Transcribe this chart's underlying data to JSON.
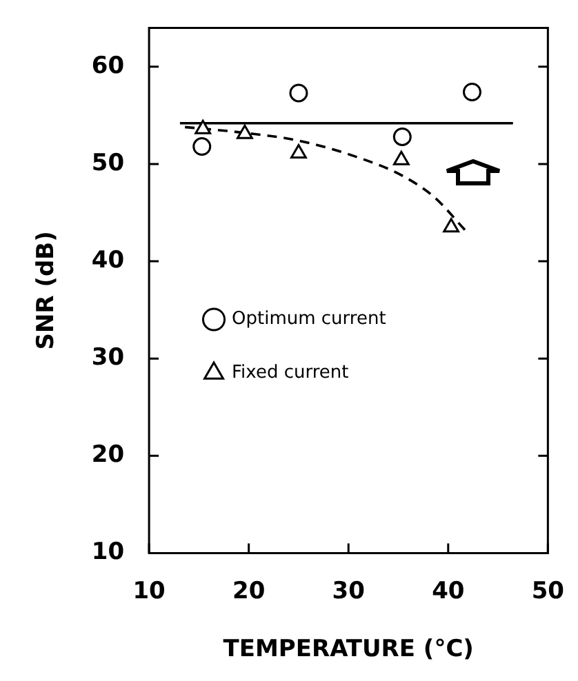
{
  "chart_data": {
    "type": "scatter",
    "xlabel": "TEMPERATURE (°C)",
    "ylabel": "SNR (dB)",
    "xlim": [
      10,
      50
    ],
    "xticks": [
      10,
      20,
      30,
      40,
      50
    ],
    "ylim": [
      10,
      64
    ],
    "yticks": [
      10,
      20,
      30,
      40,
      50,
      60
    ],
    "grid": false,
    "legend": "left",
    "series": [
      {
        "name": "Optimum current",
        "type": "scatter",
        "marker": "circle",
        "color": "#000000",
        "x": [
          15.3,
          25.0,
          35.4,
          42.4
        ],
        "values": [
          51.8,
          57.3,
          52.8,
          57.4
        ]
      },
      {
        "type": "line",
        "marker": "none",
        "line_style": "solid",
        "color": "#000000",
        "x": [
          13.1,
          46.5
        ],
        "values": [
          54.2,
          54.2
        ]
      },
      {
        "name": "Fixed current",
        "type": "scatter",
        "marker": "triangle",
        "color": "#000000",
        "x": [
          15.4,
          19.6,
          25.0,
          35.3,
          40.3
        ],
        "values": [
          53.6,
          53.1,
          51.1,
          50.4,
          43.5
        ]
      },
      {
        "type": "line",
        "marker": "none",
        "line_style": "dashed",
        "color": "#000000",
        "x": [
          13.6,
          19.6,
          25.0,
          30.9,
          35.4,
          38.6,
          41.7
        ],
        "values": [
          53.8,
          53.2,
          52.4,
          50.7,
          48.8,
          46.6,
          43.2
        ]
      }
    ]
  }
}
